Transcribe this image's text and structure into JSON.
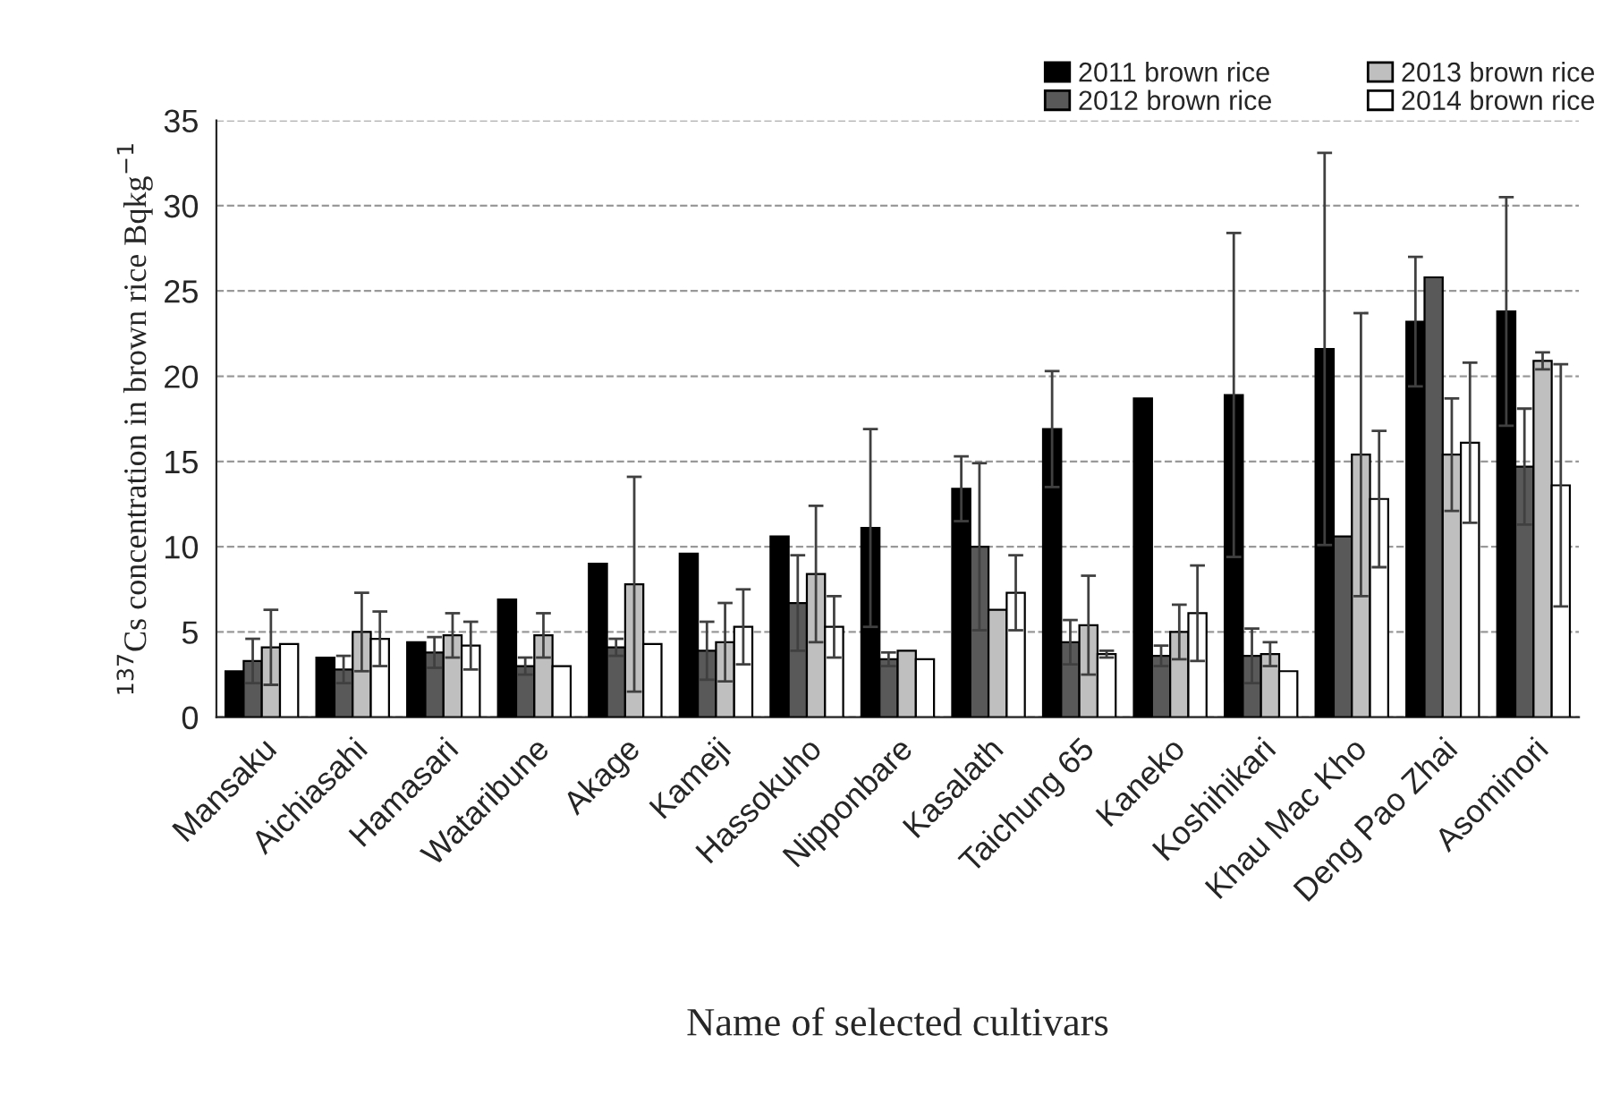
{
  "chart_data": {
    "type": "bar",
    "xlabel": "Name of selected cultivars",
    "ylabel": "$^{137}$Cs concentration in brown rice Bqkg$^{−1}$",
    "categories": [
      "Mansaku",
      "Aichiasahi",
      "Hamasari",
      "Wataribune",
      "Akage",
      "Kameji",
      "Hassokuho",
      "Nipponbare",
      "Kasalath",
      "Taichung 65",
      "Kaneko",
      "Koshihikari",
      "Khau Mac Kho",
      "Deng Pao Zhai",
      "Asominori"
    ],
    "series": [
      {
        "name": "2011 brown rice",
        "color": "#000000",
        "values": [
          2.7,
          3.5,
          4.4,
          6.9,
          9.0,
          9.6,
          10.6,
          11.1,
          13.4,
          16.9,
          18.7,
          18.9,
          21.6,
          23.2,
          23.8
        ],
        "errors": [
          null,
          null,
          null,
          null,
          null,
          null,
          null,
          5.8,
          1.9,
          3.4,
          null,
          9.5,
          11.5,
          3.8,
          6.7
        ]
      },
      {
        "name": "2012 brown rice",
        "color": "#595959",
        "values": [
          3.3,
          2.8,
          3.8,
          3.0,
          4.1,
          3.9,
          6.7,
          3.4,
          10.0,
          4.4,
          3.6,
          3.6,
          10.6,
          25.8,
          14.7
        ],
        "errors": [
          1.3,
          0.8,
          0.9,
          0.5,
          0.5,
          1.7,
          2.8,
          0.4,
          4.9,
          1.3,
          0.6,
          1.6,
          null,
          null,
          3.4
        ]
      },
      {
        "name": "2013 brown rice",
        "color": "#bfbfbf",
        "values": [
          4.1,
          5.0,
          4.8,
          4.8,
          7.8,
          4.4,
          8.4,
          3.9,
          6.3,
          5.4,
          5.0,
          3.7,
          15.4,
          15.4,
          20.9
        ],
        "errors": [
          2.2,
          2.3,
          1.3,
          1.3,
          6.3,
          2.3,
          4.0,
          null,
          null,
          2.9,
          1.6,
          0.7,
          8.3,
          3.3,
          0.5
        ]
      },
      {
        "name": "2014 brown rice",
        "color": "#ffffff",
        "values": [
          4.3,
          4.6,
          4.2,
          3.0,
          4.3,
          5.3,
          5.3,
          3.4,
          7.3,
          3.7,
          6.1,
          2.7,
          12.8,
          16.1,
          13.6
        ],
        "errors": [
          null,
          1.6,
          1.4,
          null,
          null,
          2.2,
          1.8,
          null,
          2.2,
          0.2,
          2.8,
          null,
          4.0,
          4.7,
          7.1
        ]
      }
    ],
    "ylim": [
      0,
      35
    ],
    "yticks": [
      0,
      5,
      10,
      15,
      20,
      25,
      30,
      35
    ],
    "grid": "y",
    "legend": "top right"
  }
}
